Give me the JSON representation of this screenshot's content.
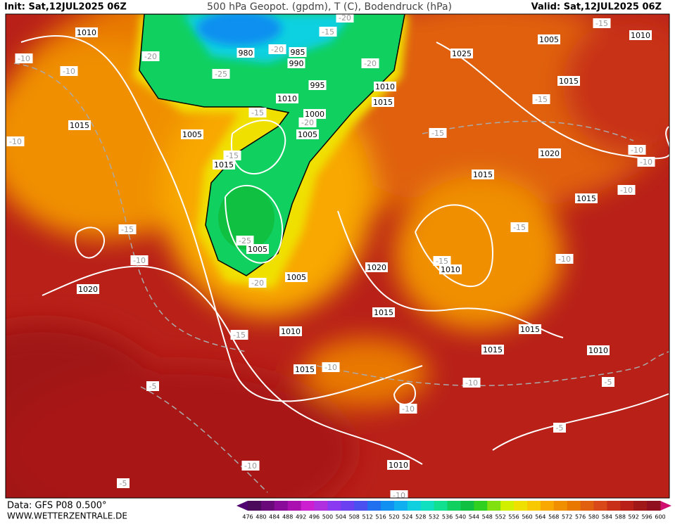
{
  "header": {
    "init": "Init: Sat,12JUL2025 06Z",
    "title": "500 hPa Geopot. (gpdm), T (C), Bodendruck (hPa)",
    "valid": "Valid: Sat,12JUL2025 06Z"
  },
  "map": {
    "pressure_labels": [
      "1010",
      "980",
      "985",
      "990",
      "995",
      "1010",
      "1000",
      "1005",
      "1015",
      "1005",
      "1015",
      "1005",
      "1005",
      "1020",
      "1010",
      "1015",
      "1010",
      "1015",
      "1025",
      "1005",
      "1010",
      "1015",
      "1020",
      "1015",
      "1015",
      "1020",
      "1010",
      "1015",
      "1015",
      "1015",
      "1010",
      "1010"
    ],
    "temperature_labels": [
      "-15",
      "-20",
      "-20",
      "-20",
      "-25",
      "-20",
      "-15",
      "-20",
      "-15",
      "-10",
      "-10",
      "-10",
      "-15",
      "-10",
      "-25",
      "-20",
      "-15",
      "-15",
      "-15",
      "-15",
      "-10",
      "-10",
      "-10",
      "-15",
      "-15",
      "-10",
      "-10",
      "-10",
      "-10",
      "-5",
      "-5",
      "-5",
      "-10",
      "-5",
      "-10"
    ]
  },
  "footer": {
    "data": "Data: GFS P08 0.500°",
    "site": "WWW.WETTERZENTRALE.DE"
  },
  "colorbar": {
    "labels": [
      "476",
      "480",
      "484",
      "488",
      "492",
      "496",
      "500",
      "504",
      "508",
      "512",
      "516",
      "520",
      "524",
      "528",
      "532",
      "536",
      "540",
      "544",
      "548",
      "552",
      "556",
      "560",
      "564",
      "568",
      "572",
      "576",
      "580",
      "584",
      "588",
      "592",
      "596",
      "600"
    ],
    "colors": [
      "#4b0a5a",
      "#6a0a7a",
      "#8a0a9a",
      "#aa10b0",
      "#cc20d0",
      "#b030e0",
      "#8a3af0",
      "#6a40f0",
      "#4a50f0",
      "#2070f0",
      "#1090f0",
      "#10b0f0",
      "#10d0e0",
      "#10e0c0",
      "#10e090",
      "#10d060",
      "#10c040",
      "#30d020",
      "#80e010",
      "#d0f000",
      "#f0e000",
      "#f8c800",
      "#f8a800",
      "#f09000",
      "#e87800",
      "#e06010",
      "#d84818",
      "#c83018",
      "#b82018",
      "#a01818",
      "#901020"
    ]
  }
}
